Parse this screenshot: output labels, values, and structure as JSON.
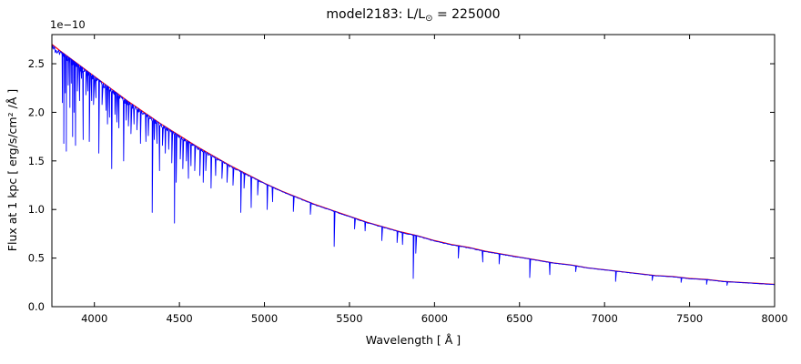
{
  "figure": {
    "title": {
      "prefix": "model2183: L/L",
      "sub": "⊙",
      "suffix": " = 225000"
    },
    "offset_text": "1e−10",
    "xlabel": "Wavelength [ Å ]",
    "ylabel": "Flux at 1 kpc [ erg/s/cm² /Å ]"
  },
  "chart_data": {
    "type": "line",
    "title": "model2183: L/L⊙ = 225000",
    "xlabel": "Wavelength [ Å ]",
    "ylabel": "Flux at 1 kpc [ erg/s/cm² /Å ]",
    "y_offset_factor": "1e-10",
    "grid": false,
    "legend": null,
    "xlim": [
      3750,
      8000
    ],
    "ylim": [
      0,
      2.8
    ],
    "xticks": [
      4000,
      4500,
      5000,
      5500,
      6000,
      6500,
      7000,
      7500,
      8000
    ],
    "xtick_labels": [
      "4000",
      "4500",
      "5000",
      "5500",
      "6000",
      "6500",
      "7000",
      "7500",
      "8000"
    ],
    "yticks": [
      0,
      0.5,
      1.0,
      1.5,
      2.0,
      2.5
    ],
    "ytick_labels": [
      "0.0",
      "0.5",
      "1.0",
      "1.5",
      "2.0",
      "2.5"
    ],
    "series": [
      {
        "name": "continuum-model",
        "color": "#ff0000",
        "x": [
          3750,
          3800,
          3900,
          4000,
          4100,
          4200,
          4300,
          4400,
          4500,
          4600,
          4700,
          4800,
          4900,
          5000,
          5100,
          5200,
          5300,
          5400,
          5500,
          5600,
          5700,
          5800,
          5900,
          6000,
          6100,
          6200,
          6300,
          6400,
          6500,
          6600,
          6700,
          6800,
          6900,
          7000,
          7100,
          7200,
          7300,
          7400,
          7500,
          7600,
          7700,
          7800,
          7900,
          8000
        ],
        "y": [
          2.7,
          2.63,
          2.5,
          2.37,
          2.24,
          2.11,
          1.99,
          1.87,
          1.76,
          1.65,
          1.55,
          1.45,
          1.36,
          1.27,
          1.19,
          1.12,
          1.05,
          0.99,
          0.93,
          0.87,
          0.82,
          0.77,
          0.73,
          0.68,
          0.64,
          0.61,
          0.57,
          0.54,
          0.51,
          0.48,
          0.45,
          0.43,
          0.4,
          0.38,
          0.36,
          0.34,
          0.32,
          0.31,
          0.29,
          0.28,
          0.26,
          0.25,
          0.24,
          0.23
        ]
      },
      {
        "name": "spectrum-with-absorption-lines",
        "color": "#0000ff",
        "continuum_ref": 0,
        "absorption_lines": [
          [
            3812,
            2.1
          ],
          [
            3820,
            1.68
          ],
          [
            3829,
            2.2
          ],
          [
            3835,
            1.6
          ],
          [
            3846,
            2.28
          ],
          [
            3856,
            2.05
          ],
          [
            3864,
            2.3
          ],
          [
            3872,
            1.75
          ],
          [
            3880,
            2.0
          ],
          [
            3889,
            1.66
          ],
          [
            3900,
            2.22
          ],
          [
            3913,
            2.12
          ],
          [
            3924,
            2.35
          ],
          [
            3934,
            1.72
          ],
          [
            3950,
            2.18
          ],
          [
            3962,
            2.22
          ],
          [
            3970,
            1.7
          ],
          [
            3984,
            2.12
          ],
          [
            3995,
            2.08
          ],
          [
            4009,
            2.15
          ],
          [
            4026,
            1.58
          ],
          [
            4045,
            2.08
          ],
          [
            4069,
            2.02
          ],
          [
            4077,
            1.88
          ],
          [
            4089,
            1.95
          ],
          [
            4102,
            1.42
          ],
          [
            4121,
            1.98
          ],
          [
            4132,
            1.9
          ],
          [
            4144,
            1.84
          ],
          [
            4172,
            1.5
          ],
          [
            4187,
            1.92
          ],
          [
            4200,
            1.86
          ],
          [
            4215,
            1.78
          ],
          [
            4233,
            1.88
          ],
          [
            4250,
            1.82
          ],
          [
            4271,
            1.68
          ],
          [
            4303,
            1.7
          ],
          [
            4317,
            1.76
          ],
          [
            4340,
            0.97
          ],
          [
            4352,
            1.72
          ],
          [
            4368,
            1.68
          ],
          [
            4383,
            1.4
          ],
          [
            4400,
            1.66
          ],
          [
            4417,
            1.58
          ],
          [
            4437,
            1.62
          ],
          [
            4455,
            1.48
          ],
          [
            4471,
            0.86
          ],
          [
            4481,
            1.28
          ],
          [
            4505,
            1.52
          ],
          [
            4520,
            1.42
          ],
          [
            4541,
            1.5
          ],
          [
            4553,
            1.32
          ],
          [
            4568,
            1.45
          ],
          [
            4590,
            1.4
          ],
          [
            4620,
            1.35
          ],
          [
            4640,
            1.28
          ],
          [
            4655,
            1.4
          ],
          [
            4686,
            1.22
          ],
          [
            4713,
            1.35
          ],
          [
            4750,
            1.32
          ],
          [
            4780,
            1.28
          ],
          [
            4815,
            1.25
          ],
          [
            4861,
            0.97
          ],
          [
            4880,
            1.22
          ],
          [
            4922,
            1.02
          ],
          [
            4960,
            1.15
          ],
          [
            5016,
            1.0
          ],
          [
            5048,
            1.08
          ],
          [
            5170,
            0.98
          ],
          [
            5270,
            0.95
          ],
          [
            5410,
            0.62
          ],
          [
            5530,
            0.8
          ],
          [
            5592,
            0.78
          ],
          [
            5690,
            0.68
          ],
          [
            5780,
            0.66
          ],
          [
            5812,
            0.64
          ],
          [
            5875,
            0.29
          ],
          [
            5890,
            0.55
          ],
          [
            6140,
            0.5
          ],
          [
            6284,
            0.46
          ],
          [
            6380,
            0.44
          ],
          [
            6560,
            0.3
          ],
          [
            6678,
            0.33
          ],
          [
            6830,
            0.36
          ],
          [
            7065,
            0.26
          ],
          [
            7280,
            0.27
          ],
          [
            7450,
            0.25
          ],
          [
            7600,
            0.23
          ],
          [
            7720,
            0.22
          ]
        ]
      }
    ]
  }
}
